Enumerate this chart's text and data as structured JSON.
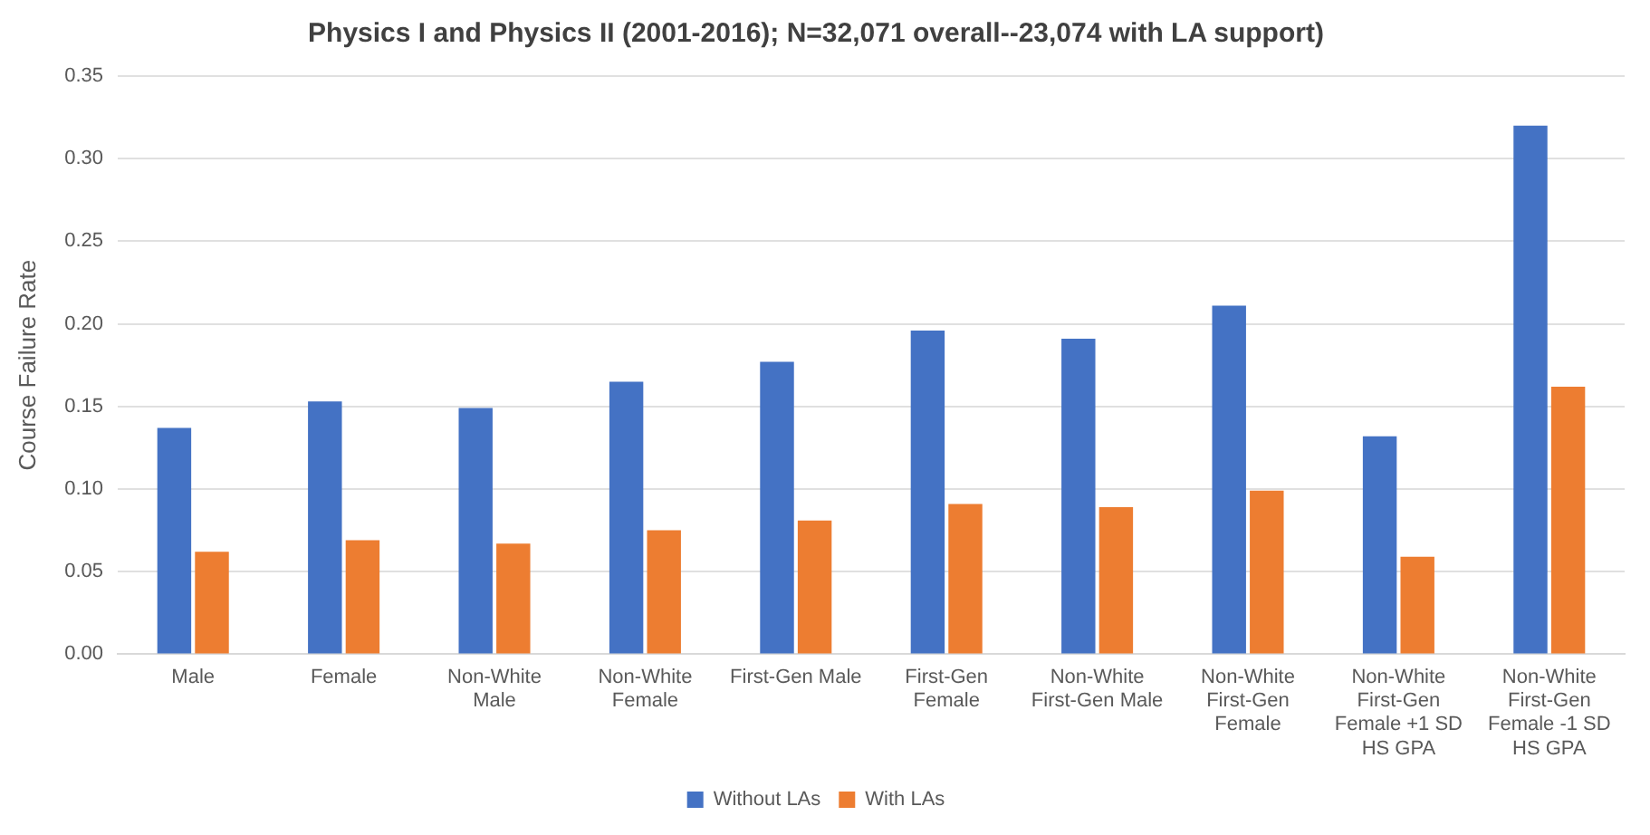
{
  "chart_data": {
    "type": "bar",
    "title": "Physics I and Physics II (2001-2016); N=32,071 overall--23,074 with LA support)",
    "ylabel": "Course Failure Rate",
    "categories": [
      "Male",
      "Female",
      "Non-White Male",
      "Non-White Female",
      "First-Gen Male",
      "First-Gen Female",
      "Non-White First-Gen Male",
      "Non-White First-Gen Female",
      "Non-White First-Gen Female +1 SD HS GPA",
      "Non-White First-Gen Female -1 SD HS GPA"
    ],
    "series": [
      {
        "name": "Without LAs",
        "color": "#4472c4",
        "values": [
          0.137,
          0.153,
          0.149,
          0.165,
          0.177,
          0.196,
          0.191,
          0.211,
          0.132,
          0.32
        ]
      },
      {
        "name": "With LAs",
        "color": "#ed7d31",
        "values": [
          0.062,
          0.069,
          0.067,
          0.075,
          0.081,
          0.091,
          0.089,
          0.099,
          0.059,
          0.162
        ]
      }
    ],
    "ylim": [
      0,
      0.35
    ],
    "yticks": [
      {
        "value": 0,
        "label": "0.00"
      },
      {
        "value": 0.05,
        "label": "0.05"
      },
      {
        "value": 0.1,
        "label": "0.10"
      },
      {
        "value": 0.15,
        "label": "0.15"
      },
      {
        "value": 0.2,
        "label": "0.20"
      },
      {
        "value": 0.25,
        "label": "0.25"
      },
      {
        "value": 0.3,
        "label": "0.30"
      },
      {
        "value": 0.35,
        "label": "0.35"
      }
    ],
    "grid": "y",
    "legend": "bottom"
  }
}
